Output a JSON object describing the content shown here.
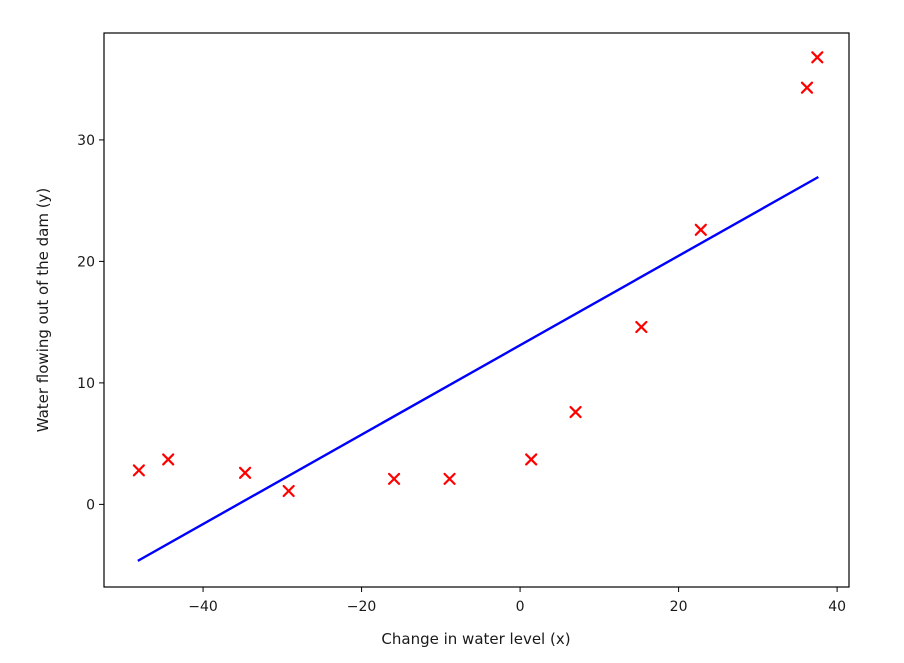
{
  "chart_data": {
    "type": "scatter",
    "xlabel": "Change in water level (x)",
    "ylabel": "Water flowing out of the dam (y)",
    "xlim": [
      -52.5,
      41.5
    ],
    "ylim": [
      -6.8,
      38.8
    ],
    "xticks": [
      -40,
      -20,
      0,
      20,
      40
    ],
    "yticks": [
      0,
      10,
      20,
      30
    ],
    "grid": false,
    "colors": {
      "points": "#ff0000",
      "fit_line": "#0000ff",
      "axes": "#000000"
    },
    "series": [
      {
        "kind": "scatter",
        "marker": "x",
        "x": [
          -48.1,
          -44.4,
          -34.7,
          -29.2,
          -15.9,
          -8.9,
          1.4,
          7.0,
          15.3,
          22.8,
          36.2,
          37.5
        ],
        "y": [
          2.8,
          3.7,
          2.6,
          1.1,
          2.1,
          2.1,
          3.7,
          7.6,
          14.6,
          22.6,
          34.3,
          36.8
        ]
      },
      {
        "kind": "line",
        "x": [
          -48.1,
          37.5
        ],
        "y": [
          -4.6,
          26.9
        ]
      }
    ]
  }
}
